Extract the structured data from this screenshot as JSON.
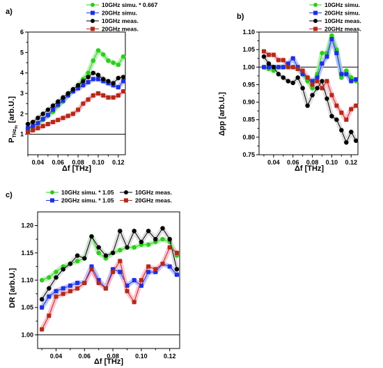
{
  "colors": {
    "green": "#2ecc1f",
    "blue": "#1f2fe0",
    "black": "#000000",
    "red": "#b22a18",
    "glow_green": "#a8f0a0",
    "glow_blue": "#aab6ff",
    "glow_red": "#ffb6c8",
    "glow_black": "#d8d8d8"
  },
  "chart_data": [
    {
      "panel": "a)",
      "type": "line",
      "xlabel": "Δf [THz]",
      "ylabel_main": "P",
      "ylabel_sub": "THz",
      "ylabel_subsub": "fit",
      "ylabel_rest": " [arb.U.]",
      "xlim": [
        0.03,
        0.127
      ],
      "ylim": [
        0,
        6
      ],
      "x_ticks": [
        "0.04",
        "0.06",
        "0.08",
        "0.10",
        "0.12"
      ],
      "y_ticks": [
        "1",
        "2",
        "3",
        "4",
        "5",
        "6"
      ],
      "reference_line": 1.0,
      "legend": [
        "10GHz simu. * 0.667",
        "20GHz simu.",
        "10GHz meas.",
        "20GHz meas."
      ],
      "series": [
        {
          "name": "10GHz simu. * 0.667",
          "color": "green",
          "marker": "circle",
          "x": [
            0.03,
            0.035,
            0.04,
            0.045,
            0.05,
            0.055,
            0.06,
            0.065,
            0.07,
            0.075,
            0.08,
            0.085,
            0.09,
            0.095,
            0.1,
            0.105,
            0.11,
            0.115,
            0.12,
            0.125
          ],
          "y": [
            1.2,
            1.35,
            1.5,
            1.7,
            1.9,
            2.1,
            2.4,
            2.6,
            2.9,
            3.2,
            3.4,
            3.7,
            4.0,
            4.6,
            5.1,
            4.9,
            4.6,
            4.5,
            4.4,
            4.8
          ]
        },
        {
          "name": "20GHz simu.",
          "color": "blue",
          "marker": "square",
          "x": [
            0.03,
            0.035,
            0.04,
            0.045,
            0.05,
            0.055,
            0.06,
            0.065,
            0.07,
            0.075,
            0.08,
            0.085,
            0.09,
            0.095,
            0.1,
            0.105,
            0.11,
            0.115,
            0.12,
            0.125
          ],
          "y": [
            1.3,
            1.4,
            1.55,
            1.75,
            1.95,
            2.2,
            2.45,
            2.65,
            2.9,
            3.1,
            3.25,
            3.4,
            3.55,
            3.7,
            3.7,
            3.6,
            3.5,
            3.4,
            3.3,
            3.6
          ]
        },
        {
          "name": "10GHz meas.",
          "color": "black",
          "marker": "circle",
          "x": [
            0.03,
            0.035,
            0.04,
            0.045,
            0.05,
            0.055,
            0.06,
            0.065,
            0.07,
            0.075,
            0.08,
            0.085,
            0.09,
            0.095,
            0.1,
            0.105,
            0.11,
            0.115,
            0.12,
            0.125
          ],
          "y": [
            1.5,
            1.6,
            1.8,
            2.0,
            2.2,
            2.4,
            2.6,
            2.8,
            3.0,
            3.2,
            3.4,
            3.6,
            3.8,
            4.0,
            3.9,
            3.7,
            3.6,
            3.5,
            3.75,
            3.8
          ]
        },
        {
          "name": "20GHz meas.",
          "color": "red",
          "marker": "square",
          "x": [
            0.03,
            0.035,
            0.04,
            0.045,
            0.05,
            0.055,
            0.06,
            0.065,
            0.07,
            0.075,
            0.08,
            0.085,
            0.09,
            0.095,
            0.1,
            0.105,
            0.11,
            0.115,
            0.12,
            0.125
          ],
          "y": [
            1.1,
            1.2,
            1.3,
            1.4,
            1.5,
            1.6,
            1.7,
            1.8,
            1.9,
            2.0,
            2.2,
            2.5,
            2.7,
            2.9,
            3.0,
            2.9,
            2.8,
            2.8,
            2.9,
            3.1
          ]
        }
      ]
    },
    {
      "panel": "b)",
      "type": "line",
      "xlabel": "Δf [THz]",
      "ylabel": "Δpp [arb.U.]",
      "xlim": [
        0.025,
        0.127
      ],
      "ylim": [
        0.75,
        1.1
      ],
      "x_ticks": [
        "0.04",
        "0.06",
        "0.08",
        "0.10",
        "0.12"
      ],
      "y_ticks": [
        "0.75",
        "0.80",
        "0.85",
        "0.90",
        "0.95",
        "1.00",
        "1.05",
        "1.10"
      ],
      "reference_line": 1.0,
      "legend": [
        "10GHz simu.",
        "20GHz simu.",
        "10GHz meas.",
        "20GHz meas."
      ],
      "series": [
        {
          "name": "10GHz simu.",
          "color": "green",
          "marker": "circle",
          "x": [
            0.03,
            0.035,
            0.04,
            0.045,
            0.05,
            0.055,
            0.06,
            0.065,
            0.07,
            0.075,
            0.08,
            0.085,
            0.09,
            0.095,
            0.1,
            0.105,
            0.11,
            0.115,
            0.12,
            0.125
          ],
          "y": [
            1.0,
            0.995,
            0.99,
            1.0,
            1.0,
            1.0,
            1.0,
            0.995,
            0.98,
            0.96,
            0.94,
            0.98,
            1.04,
            1.04,
            1.09,
            1.05,
            0.97,
            0.99,
            0.97,
            0.96
          ]
        },
        {
          "name": "20GHz simu.",
          "color": "blue",
          "marker": "square",
          "x": [
            0.03,
            0.035,
            0.04,
            0.045,
            0.05,
            0.055,
            0.06,
            0.065,
            0.07,
            0.075,
            0.08,
            0.085,
            0.09,
            0.095,
            0.1,
            0.105,
            0.11,
            0.115,
            0.12,
            0.125
          ],
          "y": [
            1.0,
            1.0,
            1.0,
            1.0,
            1.0,
            1.01,
            1.025,
            1.0,
            0.98,
            0.97,
            0.96,
            0.97,
            1.01,
            1.03,
            1.08,
            1.04,
            0.98,
            0.98,
            0.96,
            0.965
          ]
        },
        {
          "name": "10GHz meas.",
          "color": "black",
          "marker": "circle",
          "x": [
            0.03,
            0.035,
            0.04,
            0.045,
            0.05,
            0.055,
            0.06,
            0.065,
            0.07,
            0.075,
            0.08,
            0.085,
            0.09,
            0.095,
            0.1,
            0.105,
            0.11,
            0.115,
            0.12,
            0.125
          ],
          "y": [
            1.03,
            1.01,
            1.0,
            0.98,
            0.97,
            0.96,
            0.955,
            0.97,
            0.94,
            0.89,
            0.92,
            0.94,
            0.96,
            0.91,
            0.86,
            0.85,
            0.82,
            0.785,
            0.815,
            0.79
          ]
        },
        {
          "name": "20GHz meas.",
          "color": "red",
          "marker": "square",
          "x": [
            0.03,
            0.035,
            0.04,
            0.045,
            0.05,
            0.055,
            0.06,
            0.065,
            0.07,
            0.075,
            0.08,
            0.085,
            0.09,
            0.095,
            0.1,
            0.105,
            0.11,
            0.115,
            0.12,
            0.125
          ],
          "y": [
            1.045,
            1.035,
            1.035,
            1.02,
            1.02,
            1.0,
            1.0,
            0.995,
            0.99,
            0.97,
            0.95,
            0.96,
            0.94,
            0.96,
            0.92,
            0.89,
            0.87,
            0.85,
            0.88,
            0.89
          ]
        }
      ]
    },
    {
      "panel": "c)",
      "type": "line",
      "xlabel": "Δf [THz]",
      "ylabel": "DR [arb.U.]",
      "xlim": [
        0.027,
        0.127
      ],
      "ylim": [
        0.975,
        1.225
      ],
      "x_ticks": [
        "0.04",
        "0.06",
        "0.08",
        "0.10",
        "0.12"
      ],
      "y_ticks": [
        "1.00",
        "1.05",
        "1.10",
        "1.15",
        "1.20"
      ],
      "reference_line": 1.0,
      "legend": [
        "10GHz simu. * 1.05",
        "10GHz meas.",
        "20GHz simu. * 1.05",
        "20GHz meas."
      ],
      "series": [
        {
          "name": "10GHz simu. * 1.05",
          "color": "green",
          "marker": "circle",
          "x": [
            0.03,
            0.035,
            0.04,
            0.045,
            0.05,
            0.055,
            0.06,
            0.065,
            0.07,
            0.075,
            0.08,
            0.085,
            0.09,
            0.095,
            0.1,
            0.105,
            0.11,
            0.115,
            0.12,
            0.125
          ],
          "y": [
            1.1,
            1.105,
            1.115,
            1.125,
            1.13,
            1.135,
            1.14,
            1.18,
            1.15,
            1.14,
            1.15,
            1.155,
            1.16,
            1.16,
            1.165,
            1.165,
            1.17,
            1.175,
            1.17,
            1.145
          ]
        },
        {
          "name": "20GHz simu. * 1.05",
          "color": "blue",
          "marker": "square",
          "x": [
            0.03,
            0.035,
            0.04,
            0.045,
            0.05,
            0.055,
            0.06,
            0.065,
            0.07,
            0.075,
            0.08,
            0.085,
            0.09,
            0.095,
            0.1,
            0.105,
            0.11,
            0.115,
            0.12,
            0.125
          ],
          "y": [
            1.05,
            1.07,
            1.08,
            1.085,
            1.09,
            1.095,
            1.095,
            1.125,
            1.1,
            1.085,
            1.12,
            1.115,
            1.09,
            1.1,
            1.09,
            1.115,
            1.115,
            1.13,
            1.125,
            1.11
          ]
        },
        {
          "name": "10GHz meas.",
          "color": "black",
          "marker": "circle",
          "x": [
            0.03,
            0.035,
            0.04,
            0.045,
            0.05,
            0.055,
            0.06,
            0.065,
            0.07,
            0.075,
            0.08,
            0.085,
            0.09,
            0.095,
            0.1,
            0.105,
            0.11,
            0.115,
            0.12,
            0.125
          ],
          "y": [
            1.065,
            1.085,
            1.105,
            1.12,
            1.13,
            1.145,
            1.14,
            1.18,
            1.16,
            1.145,
            1.15,
            1.19,
            1.16,
            1.19,
            1.17,
            1.19,
            1.175,
            1.195,
            1.175,
            1.12
          ]
        },
        {
          "name": "20GHz meas.",
          "color": "red",
          "marker": "square",
          "x": [
            0.03,
            0.035,
            0.04,
            0.045,
            0.05,
            0.055,
            0.06,
            0.065,
            0.07,
            0.075,
            0.08,
            0.085,
            0.09,
            0.095,
            0.1,
            0.105,
            0.11,
            0.115,
            0.12,
            0.125
          ],
          "y": [
            1.01,
            1.035,
            1.07,
            1.075,
            1.08,
            1.085,
            1.095,
            1.12,
            1.095,
            1.085,
            1.115,
            1.135,
            1.08,
            1.06,
            1.1,
            1.125,
            1.12,
            1.13,
            1.16,
            1.15
          ]
        }
      ]
    }
  ]
}
